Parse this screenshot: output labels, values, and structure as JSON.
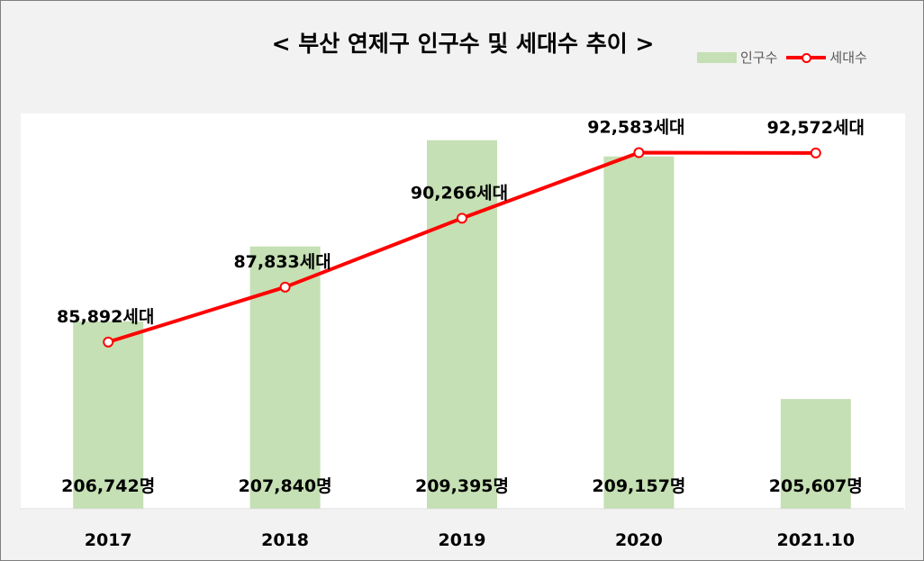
{
  "chart_data": {
    "type": "bar",
    "title": "< 부산 연제구 인구수 및 세대수 추이 >",
    "categories": [
      "2017",
      "2018",
      "2019",
      "2020",
      "2021.10"
    ],
    "series": [
      {
        "name": "인구수",
        "type": "bar",
        "color": "#c5e0b4",
        "values": [
          206742,
          207840,
          209395,
          209157,
          205607
        ],
        "labels": [
          "206,742명",
          "207,840명",
          "209,395명",
          "209,157명",
          "205,607명"
        ]
      },
      {
        "name": "세대수",
        "type": "line",
        "color": "#ff0000",
        "values": [
          85892,
          87833,
          90266,
          92583,
          92572
        ],
        "labels": [
          "85,892세대",
          "87,833세대",
          "90,266세대",
          "92,583세대",
          "92,572세대"
        ]
      }
    ],
    "bar_axis_range": [
      204000,
      209800
    ],
    "line_axis_range": [
      80000,
      94000
    ],
    "grid": false,
    "legend": "top-right"
  }
}
